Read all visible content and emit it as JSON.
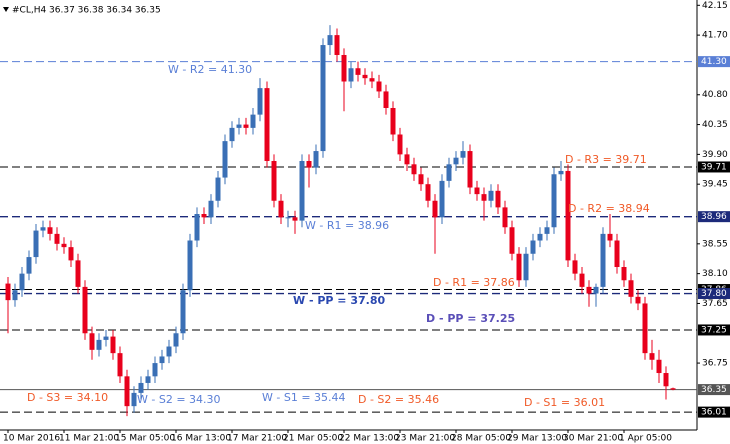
{
  "chart_data": {
    "type": "candlestick",
    "title": "#CL,H4 36.37 36.38 36.34 36.35",
    "up_color": "#3a6fb5",
    "down_color": "#e8001c",
    "categories": [
      "10 Mar 2016",
      null,
      null,
      null,
      null,
      null,
      null,
      null,
      "11 Mar 21:00",
      null,
      null,
      null,
      null,
      null,
      null,
      null,
      "15 Mar 05:00",
      null,
      null,
      null,
      null,
      null,
      null,
      null,
      "16 Mar 13:00",
      null,
      null,
      null,
      null,
      null,
      null,
      null,
      "17 Mar 21:00",
      null,
      null,
      null,
      null,
      null,
      null,
      null,
      "21 Mar 05:00",
      null,
      null,
      null,
      null,
      null,
      null,
      null,
      "22 Mar 13:00",
      null,
      null,
      null,
      null,
      null,
      null,
      null,
      "23 Mar 21:00",
      null,
      null,
      null,
      null,
      null,
      null,
      null,
      "28 Mar 05:00",
      null,
      null,
      null,
      null,
      null,
      null,
      null,
      "29 Mar 13:00",
      null,
      null,
      null,
      null,
      null,
      null,
      null,
      "30 Mar 21:00",
      null,
      null,
      null,
      null,
      null,
      null,
      null,
      "1 Apr 05:00",
      null,
      null,
      null,
      null,
      null,
      null,
      null
    ],
    "open": [
      37.95,
      37.7,
      37.85,
      38.1,
      38.35,
      38.75,
      38.8,
      38.7,
      38.55,
      38.5,
      38.3,
      37.9,
      37.2,
      36.95,
      37.1,
      37.15,
      36.9,
      36.55,
      36.1,
      36.3,
      36.45,
      36.55,
      36.75,
      36.85,
      37.0,
      37.2,
      37.85,
      38.6,
      39.0,
      38.95,
      39.2,
      39.55,
      40.1,
      40.3,
      40.35,
      40.3,
      40.5,
      40.9,
      39.8,
      39.2,
      38.95,
      38.95,
      38.9,
      39.8,
      39.7,
      39.95,
      41.55,
      41.7,
      41.4,
      41.0,
      41.2,
      41.1,
      41.05,
      41.0,
      40.85,
      40.6,
      40.2,
      39.9,
      39.75,
      39.6,
      39.45,
      39.2,
      38.95,
      39.5,
      39.75,
      39.85,
      39.95,
      39.4,
      39.3,
      39.2,
      39.35,
      39.1,
      38.8,
      38.4,
      38.0,
      38.4,
      38.6,
      38.7,
      38.8,
      39.6,
      39.65,
      38.3,
      38.1,
      37.9,
      37.8,
      37.9,
      38.7,
      38.6,
      38.2,
      38.0,
      37.75,
      37.65,
      36.9,
      36.8,
      36.6,
      36.37
    ],
    "high": [
      38.05,
      37.95,
      38.2,
      38.45,
      38.85,
      38.9,
      38.9,
      38.8,
      38.65,
      38.6,
      38.4,
      38.0,
      37.3,
      37.2,
      37.25,
      37.25,
      37.0,
      36.65,
      36.4,
      36.55,
      36.65,
      36.85,
      36.95,
      37.1,
      37.3,
      37.95,
      38.7,
      39.1,
      39.1,
      39.3,
      39.65,
      40.2,
      40.4,
      40.45,
      40.45,
      40.6,
      41.05,
      41.0,
      39.9,
      39.3,
      39.05,
      39.05,
      39.9,
      39.9,
      40.05,
      41.65,
      41.85,
      41.8,
      41.5,
      41.3,
      41.3,
      41.2,
      41.15,
      41.1,
      40.95,
      40.7,
      40.3,
      40.0,
      39.85,
      39.7,
      39.55,
      39.3,
      39.6,
      39.85,
      39.95,
      40.1,
      40.05,
      39.5,
      39.4,
      39.45,
      39.45,
      39.2,
      38.9,
      38.5,
      38.5,
      38.7,
      38.8,
      38.9,
      39.7,
      39.8,
      39.75,
      38.4,
      38.2,
      38.0,
      37.95,
      38.8,
      39.0,
      38.7,
      38.3,
      38.1,
      37.85,
      37.75,
      37.1,
      36.95,
      36.7,
      36.38
    ],
    "low": [
      37.2,
      37.6,
      37.75,
      38.0,
      38.25,
      38.65,
      38.6,
      38.45,
      38.4,
      38.2,
      37.8,
      37.1,
      36.8,
      36.85,
      37.0,
      36.8,
      36.45,
      35.95,
      36.0,
      36.2,
      36.35,
      36.45,
      36.65,
      36.75,
      36.9,
      37.1,
      37.75,
      38.5,
      38.85,
      38.85,
      39.1,
      39.45,
      40.0,
      40.2,
      40.2,
      40.2,
      40.4,
      39.7,
      39.1,
      38.85,
      38.8,
      38.7,
      38.8,
      39.4,
      39.6,
      39.85,
      41.4,
      41.3,
      40.55,
      40.9,
      41.0,
      40.95,
      40.9,
      40.75,
      40.5,
      40.1,
      39.8,
      39.65,
      39.5,
      39.35,
      39.1,
      38.4,
      38.85,
      39.4,
      39.65,
      39.75,
      39.3,
      39.2,
      38.9,
      39.1,
      39.0,
      38.7,
      38.3,
      37.9,
      37.9,
      38.3,
      38.5,
      38.6,
      38.7,
      39.5,
      38.2,
      38.0,
      37.8,
      37.6,
      37.6,
      37.8,
      38.5,
      38.1,
      37.9,
      37.65,
      37.55,
      36.8,
      36.65,
      36.45,
      36.2,
      36.34
    ],
    "close": [
      37.7,
      37.85,
      38.1,
      38.35,
      38.75,
      38.8,
      38.7,
      38.55,
      38.5,
      38.3,
      37.9,
      37.2,
      36.95,
      37.1,
      37.15,
      36.9,
      36.55,
      36.1,
      36.3,
      36.45,
      36.55,
      36.75,
      36.85,
      37.0,
      37.2,
      37.85,
      38.6,
      39.0,
      38.95,
      39.2,
      39.55,
      40.1,
      40.3,
      40.35,
      40.3,
      40.5,
      40.9,
      39.8,
      39.2,
      38.95,
      38.95,
      38.9,
      39.8,
      39.7,
      39.95,
      41.55,
      41.7,
      41.4,
      41.0,
      41.2,
      41.1,
      41.05,
      41.0,
      40.85,
      40.6,
      40.2,
      39.9,
      39.75,
      39.6,
      39.45,
      39.2,
      38.95,
      39.5,
      39.75,
      39.85,
      39.95,
      39.4,
      39.3,
      39.2,
      39.35,
      39.1,
      38.8,
      38.4,
      38.0,
      38.4,
      38.6,
      38.7,
      38.8,
      39.6,
      39.65,
      38.3,
      38.1,
      37.9,
      37.8,
      37.9,
      38.7,
      38.6,
      38.2,
      38.0,
      37.75,
      37.65,
      36.9,
      36.8,
      36.6,
      36.4,
      36.35
    ],
    "ylim": [
      35.74,
      42.23
    ],
    "yticks": [
      42.15,
      {
        "value": 41.7,
        "label": "41.70"
      },
      {
        "value": 40.8,
        "label": "40.80"
      },
      40.35,
      {
        "value": 39.9,
        "label": "39.90"
      },
      39.45,
      38.55,
      {
        "value": 38.1,
        "label": "38.10"
      },
      37.65,
      36.75
    ],
    "levels": [
      {
        "value": 41.3,
        "label": "41.30",
        "color": "#5a7fd6",
        "dash": true
      },
      {
        "value": 39.71,
        "label": "39.71",
        "color": "#000000",
        "dash": true
      },
      {
        "value": 38.96,
        "label": "38.96",
        "color": "#1c2a7a",
        "dash": true
      },
      {
        "value": 37.86,
        "label": "37.86",
        "color": "#000000",
        "dash": true
      },
      {
        "value": 37.8,
        "label": "37.80",
        "color": "#1c2a7a",
        "dash": true
      },
      {
        "value": 37.25,
        "label": "37.25",
        "color": "#000000",
        "dash": true
      },
      {
        "value": 36.35,
        "label": "36.35",
        "color": "#555555",
        "dash": false
      },
      {
        "value": 36.01,
        "label": "36.01",
        "color": "#000000",
        "dash": true
      }
    ],
    "annotations": [
      {
        "text": "W - R2 = 41.30",
        "color": "#5a7fd6"
      },
      {
        "text": "D - R3 = 39.71",
        "color": "#f05a28"
      },
      {
        "text": "D - R2 = 38.94",
        "color": "#f05a28"
      },
      {
        "text": "W - R1 = 38.96",
        "color": "#5a7fd6"
      },
      {
        "text": "D - R1 = 37.86",
        "color": "#f05a28"
      },
      {
        "text": "W - PP = 37.80",
        "color": "#2a48b0"
      },
      {
        "text": "D - PP = 37.25",
        "color": "#5a4fb8"
      },
      {
        "text": "D - S3 = 34.10",
        "color": "#f05a28"
      },
      {
        "text": "W - S2 = 34.30",
        "color": "#5a7fd6"
      },
      {
        "text": "W - S1 = 35.44",
        "color": "#5a7fd6"
      },
      {
        "text": "D - S2 = 35.46",
        "color": "#f05a28"
      },
      {
        "text": "D - S1 = 36.01",
        "color": "#f05a28"
      }
    ]
  }
}
